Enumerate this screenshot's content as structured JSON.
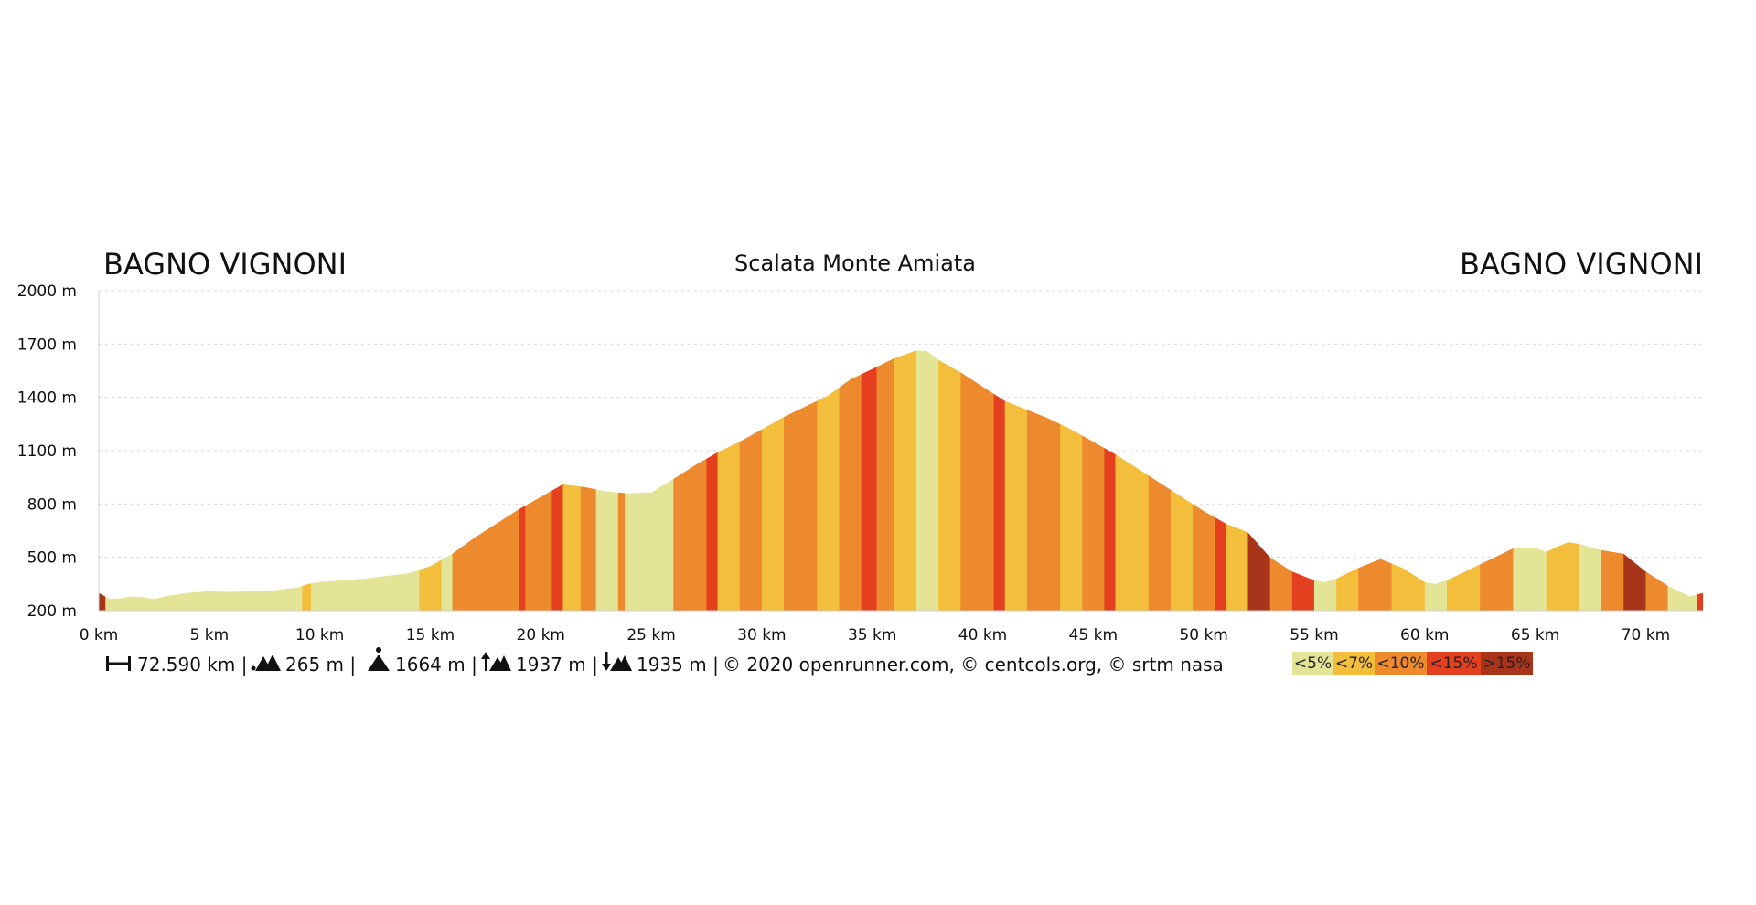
{
  "header": {
    "start_place": "BAGNO VIGNONI",
    "end_place": "BAGNO VIGNONI",
    "title": "Scalata Monte Amiata"
  },
  "stats": {
    "distance": "72.590 km |",
    "min_altitude": "265 m |",
    "max_altitude": "1664 m |",
    "ascent": "1937 m |",
    "descent": "1935 m |",
    "credits": "© 2020 openrunner.com, © centcols.org, © srtm nasa"
  },
  "legend": [
    {
      "label": "<5%",
      "color": "#e3e495"
    },
    {
      "label": "<7%",
      "color": "#f3be3b"
    },
    {
      "label": "<10%",
      "color": "#ee8a2e"
    },
    {
      "label": "<15%",
      "color": "#e4401f"
    },
    {
      "label": ">15%",
      "color": "#a83519"
    }
  ],
  "chart_data": {
    "type": "area",
    "title": "Scalata Monte Amiata",
    "x_unit": "km",
    "y_unit": "m",
    "xlim": [
      0,
      72.59
    ],
    "ylim": [
      200,
      2000
    ],
    "x_ticks": [
      0,
      5,
      10,
      15,
      20,
      25,
      30,
      35,
      40,
      45,
      50,
      55,
      60,
      65,
      70
    ],
    "x_tick_labels": [
      "0 km",
      "5 km",
      "10 km",
      "15 km",
      "20 km",
      "25 km",
      "30 km",
      "35 km",
      "40 km",
      "45 km",
      "50 km",
      "55 km",
      "60 km",
      "65 km",
      "70 km"
    ],
    "y_ticks": [
      200,
      500,
      800,
      1100,
      1400,
      1700,
      2000
    ],
    "y_tick_labels": [
      "200 m",
      "500 m",
      "800 m",
      "1100 m",
      "1400 m",
      "1700 m",
      "2000 m"
    ],
    "grid": true,
    "legend_placement": "bottom-right",
    "profile": {
      "x": [
        0,
        0.5,
        1,
        1.5,
        2,
        2.5,
        3,
        4,
        5,
        6,
        7,
        8,
        9,
        9.5,
        10,
        12,
        14,
        15,
        16,
        17,
        18,
        19,
        20,
        21,
        22,
        23,
        24,
        25,
        26,
        27,
        28,
        29,
        30,
        31,
        32,
        33,
        34,
        35,
        36,
        37,
        37.5,
        38,
        39,
        40,
        41,
        42,
        43,
        44,
        45,
        46,
        47,
        48,
        49,
        50,
        51,
        52,
        53,
        54,
        55,
        55.5,
        56,
        57,
        58,
        59,
        60,
        60.5,
        61,
        62,
        63,
        64,
        65,
        65.5,
        66,
        66.5,
        67,
        68,
        69,
        70,
        71,
        72,
        72.59
      ],
      "y": [
        300,
        265,
        270,
        280,
        275,
        265,
        280,
        300,
        310,
        305,
        310,
        315,
        330,
        350,
        360,
        380,
        410,
        450,
        520,
        610,
        690,
        770,
        840,
        910,
        895,
        870,
        860,
        865,
        940,
        1020,
        1090,
        1150,
        1220,
        1290,
        1350,
        1410,
        1500,
        1560,
        1620,
        1664,
        1660,
        1610,
        1540,
        1460,
        1380,
        1330,
        1280,
        1220,
        1150,
        1080,
        1000,
        920,
        840,
        760,
        690,
        640,
        500,
        420,
        370,
        360,
        380,
        440,
        490,
        440,
        360,
        350,
        370,
        430,
        490,
        550,
        555,
        530,
        560,
        585,
        575,
        540,
        520,
        420,
        340,
        280,
        300
      ]
    },
    "gradient_bands": [
      {
        "x_start": 0,
        "x_end": 0.3,
        "category": ">15%"
      },
      {
        "x_start": 0.3,
        "x_end": 9.2,
        "category": "<5%"
      },
      {
        "x_start": 9.2,
        "x_end": 9.6,
        "category": "<7%"
      },
      {
        "x_start": 9.6,
        "x_end": 14.5,
        "category": "<5%"
      },
      {
        "x_start": 14.5,
        "x_end": 15.5,
        "category": "<7%"
      },
      {
        "x_start": 15.5,
        "x_end": 16.0,
        "category": "<5%"
      },
      {
        "x_start": 16.0,
        "x_end": 16.5,
        "category": "<10%"
      },
      {
        "x_start": 16.5,
        "x_end": 19.0,
        "category": "<10%"
      },
      {
        "x_start": 19.0,
        "x_end": 19.3,
        "category": "<15%"
      },
      {
        "x_start": 19.3,
        "x_end": 20.5,
        "category": "<10%"
      },
      {
        "x_start": 20.5,
        "x_end": 21.0,
        "category": "<15%"
      },
      {
        "x_start": 21.0,
        "x_end": 21.8,
        "category": "<7%"
      },
      {
        "x_start": 21.8,
        "x_end": 22.5,
        "category": "<10%"
      },
      {
        "x_start": 22.5,
        "x_end": 23.5,
        "category": "<5%"
      },
      {
        "x_start": 23.5,
        "x_end": 23.8,
        "category": "<10%"
      },
      {
        "x_start": 23.8,
        "x_end": 26.0,
        "category": "<5%"
      },
      {
        "x_start": 26.0,
        "x_end": 27.5,
        "category": "<10%"
      },
      {
        "x_start": 27.5,
        "x_end": 28.0,
        "category": "<15%"
      },
      {
        "x_start": 28.0,
        "x_end": 29.0,
        "category": "<7%"
      },
      {
        "x_start": 29.0,
        "x_end": 30.0,
        "category": "<10%"
      },
      {
        "x_start": 30.0,
        "x_end": 31.0,
        "category": "<7%"
      },
      {
        "x_start": 31.0,
        "x_end": 32.5,
        "category": "<10%"
      },
      {
        "x_start": 32.5,
        "x_end": 33.5,
        "category": "<7%"
      },
      {
        "x_start": 33.5,
        "x_end": 34.5,
        "category": "<10%"
      },
      {
        "x_start": 34.5,
        "x_end": 35.2,
        "category": "<15%"
      },
      {
        "x_start": 35.2,
        "x_end": 36.0,
        "category": "<10%"
      },
      {
        "x_start": 36.0,
        "x_end": 37.0,
        "category": "<7%"
      },
      {
        "x_start": 37.0,
        "x_end": 38.0,
        "category": "<5%"
      },
      {
        "x_start": 38.0,
        "x_end": 39.0,
        "category": "<7%"
      },
      {
        "x_start": 39.0,
        "x_end": 40.5,
        "category": "<10%"
      },
      {
        "x_start": 40.5,
        "x_end": 41.0,
        "category": "<15%"
      },
      {
        "x_start": 41.0,
        "x_end": 42.0,
        "category": "<7%"
      },
      {
        "x_start": 42.0,
        "x_end": 43.5,
        "category": "<10%"
      },
      {
        "x_start": 43.5,
        "x_end": 44.5,
        "category": "<7%"
      },
      {
        "x_start": 44.5,
        "x_end": 45.5,
        "category": "<10%"
      },
      {
        "x_start": 45.5,
        "x_end": 46.0,
        "category": "<15%"
      },
      {
        "x_start": 46.0,
        "x_end": 47.5,
        "category": "<7%"
      },
      {
        "x_start": 47.5,
        "x_end": 48.5,
        "category": "<10%"
      },
      {
        "x_start": 48.5,
        "x_end": 49.5,
        "category": "<7%"
      },
      {
        "x_start": 49.5,
        "x_end": 50.5,
        "category": "<10%"
      },
      {
        "x_start": 50.5,
        "x_end": 51.0,
        "category": "<15%"
      },
      {
        "x_start": 51.0,
        "x_end": 52.0,
        "category": "<7%"
      },
      {
        "x_start": 52.0,
        "x_end": 53.0,
        "category": ">15%"
      },
      {
        "x_start": 53.0,
        "x_end": 54.0,
        "category": "<10%"
      },
      {
        "x_start": 54.0,
        "x_end": 55.0,
        "category": "<15%"
      },
      {
        "x_start": 55.0,
        "x_end": 56.0,
        "category": "<5%"
      },
      {
        "x_start": 56.0,
        "x_end": 57.0,
        "category": "<7%"
      },
      {
        "x_start": 57.0,
        "x_end": 58.5,
        "category": "<10%"
      },
      {
        "x_start": 58.5,
        "x_end": 60.0,
        "category": "<7%"
      },
      {
        "x_start": 60.0,
        "x_end": 61.0,
        "category": "<5%"
      },
      {
        "x_start": 61.0,
        "x_end": 62.5,
        "category": "<7%"
      },
      {
        "x_start": 62.5,
        "x_end": 64.0,
        "category": "<10%"
      },
      {
        "x_start": 64.0,
        "x_end": 65.5,
        "category": "<5%"
      },
      {
        "x_start": 65.5,
        "x_end": 67.0,
        "category": "<7%"
      },
      {
        "x_start": 67.0,
        "x_end": 68.0,
        "category": "<5%"
      },
      {
        "x_start": 68.0,
        "x_end": 69.0,
        "category": "<10%"
      },
      {
        "x_start": 69.0,
        "x_end": 70.0,
        "category": ">15%"
      },
      {
        "x_start": 70.0,
        "x_end": 71.0,
        "category": "<10%"
      },
      {
        "x_start": 71.0,
        "x_end": 72.3,
        "category": "<5%"
      },
      {
        "x_start": 72.3,
        "x_end": 72.59,
        "category": "<15%"
      }
    ]
  }
}
